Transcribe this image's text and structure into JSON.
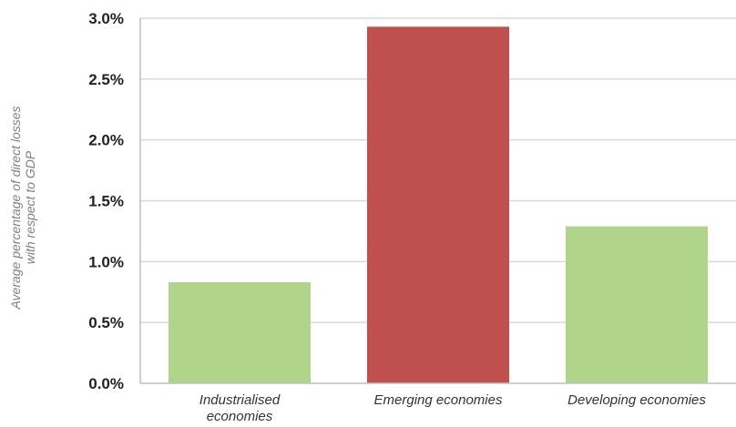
{
  "chart_data": {
    "type": "bar",
    "categories": [
      [
        "Industrialised",
        "economies"
      ],
      [
        "Emerging economies"
      ],
      [
        "Developing economies"
      ]
    ],
    "values": [
      0.0083,
      0.0293,
      0.0129
    ],
    "bar_colors": [
      "#b0d58a",
      "#c0504d",
      "#b0d58a"
    ],
    "ylabel": [
      "Average percentage of direct losses",
      "with respect to GDP"
    ],
    "xlabel": "",
    "title": "",
    "yticks": [
      0,
      0.005,
      0.01,
      0.015,
      0.02,
      0.025,
      0.03
    ],
    "ytick_labels": [
      "0.0%",
      "0.5%",
      "1.0%",
      "1.5%",
      "2.0%",
      "2.5%",
      "3.0%"
    ],
    "ylim": [
      0,
      0.03
    ],
    "grid": true,
    "gridline_color": "#d9d9d9",
    "axis_color": "#bfbfbf"
  }
}
